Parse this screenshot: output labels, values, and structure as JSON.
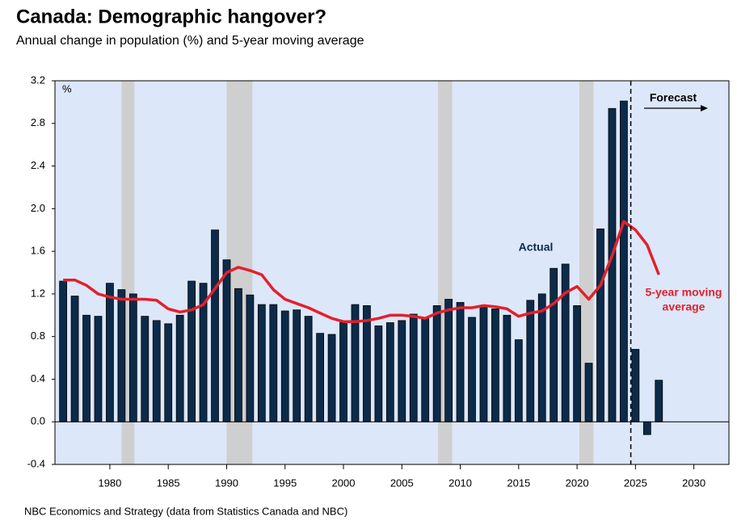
{
  "chart_data": {
    "type": "bar-line",
    "title": "Canada: Demographic hangover?",
    "subtitle": "Annual change in population (%) and 5-year moving average",
    "y_unit": "%",
    "source": "NBC Economics and Strategy (data from Statistics Canada and NBC)",
    "x": [
      1976,
      1977,
      1978,
      1979,
      1980,
      1981,
      1982,
      1983,
      1984,
      1985,
      1986,
      1987,
      1988,
      1989,
      1990,
      1991,
      1992,
      1993,
      1994,
      1995,
      1996,
      1997,
      1998,
      1999,
      2000,
      2001,
      2002,
      2003,
      2004,
      2005,
      2006,
      2007,
      2008,
      2009,
      2010,
      2011,
      2012,
      2013,
      2014,
      2015,
      2016,
      2017,
      2018,
      2019,
      2020,
      2021,
      2022,
      2023,
      2024,
      2025,
      2026,
      2027
    ],
    "series": [
      {
        "name": "Actual",
        "kind": "bar",
        "color": "#0c2b4b",
        "values": [
          1.32,
          1.18,
          1.0,
          0.99,
          1.3,
          1.24,
          1.2,
          0.99,
          0.95,
          0.92,
          1.0,
          1.32,
          1.3,
          1.8,
          1.52,
          1.25,
          1.19,
          1.1,
          1.1,
          1.04,
          1.05,
          0.99,
          0.83,
          0.82,
          0.93,
          1.1,
          1.09,
          0.9,
          0.93,
          0.95,
          1.01,
          0.97,
          1.09,
          1.15,
          1.12,
          0.98,
          1.09,
          1.06,
          1.0,
          0.77,
          1.14,
          1.2,
          1.44,
          1.48,
          1.09,
          0.55,
          1.81,
          2.94,
          3.01,
          0.68,
          -0.12,
          0.39
        ]
      },
      {
        "name": "5-year moving average",
        "kind": "line",
        "color": "#e3202b",
        "values": [
          1.33,
          1.33,
          1.28,
          1.2,
          1.17,
          1.15,
          1.15,
          1.15,
          1.14,
          1.06,
          1.03,
          1.05,
          1.1,
          1.25,
          1.4,
          1.45,
          1.42,
          1.38,
          1.24,
          1.15,
          1.11,
          1.07,
          1.02,
          0.97,
          0.94,
          0.94,
          0.95,
          0.97,
          1.0,
          1.0,
          0.99,
          0.97,
          1.02,
          1.05,
          1.07,
          1.07,
          1.09,
          1.08,
          1.06,
          0.99,
          1.02,
          1.04,
          1.11,
          1.21,
          1.27,
          1.15,
          1.28,
          1.56,
          1.88,
          1.8,
          1.66,
          1.38
        ]
      }
    ],
    "annotations": [
      {
        "text": "Actual"
      },
      {
        "text": "5-year moving"
      },
      {
        "text": "average"
      },
      {
        "text": "Forecast"
      }
    ],
    "recessions": [
      [
        1981,
        1982.1
      ],
      [
        1990,
        1992.2
      ],
      [
        2008.1,
        2009.3
      ],
      [
        2020.2,
        2021.4
      ]
    ],
    "forecast_start": 2024.6,
    "xlim": [
      1975.3,
      2033
    ],
    "xticks": [
      1980,
      1985,
      1990,
      1995,
      2000,
      2005,
      2010,
      2015,
      2020,
      2025,
      2030
    ],
    "ylim": [
      -0.4,
      3.2
    ],
    "yticks": [
      3.2,
      2.8,
      2.4,
      {
        "value": 2,
        "label": "2.0"
      },
      1.6,
      1.2,
      0.8,
      0.4,
      {
        "value": 0,
        "label": "0.0"
      },
      -0.4
    ],
    "background": "#dce7f9"
  }
}
